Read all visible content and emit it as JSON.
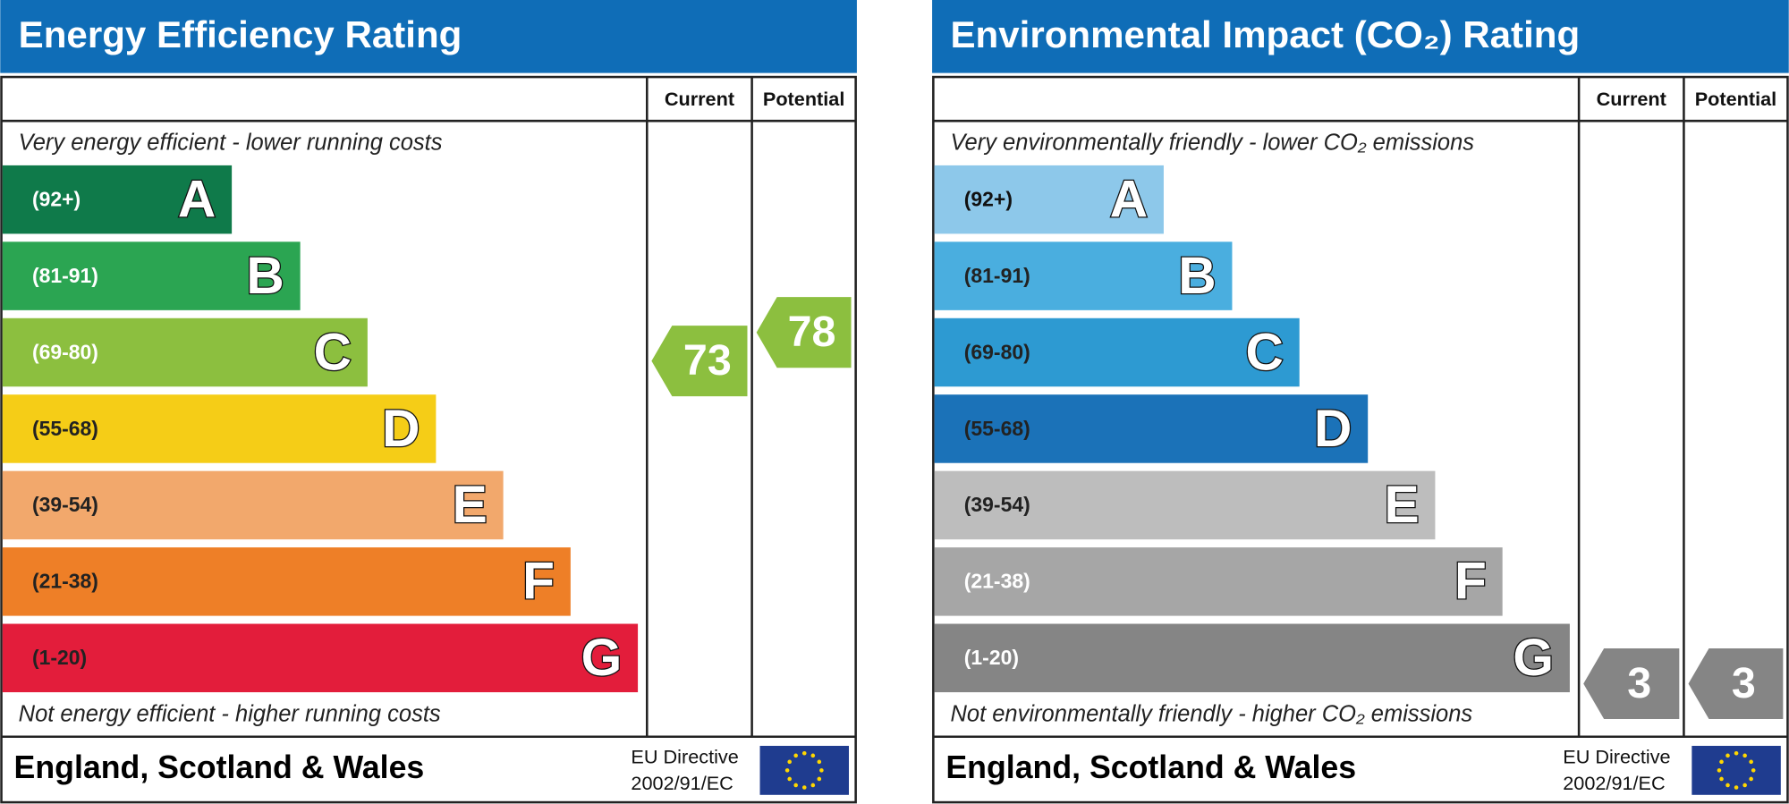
{
  "panels": [
    {
      "title": "Energy Efficiency Rating",
      "columns": [
        "Current",
        "Potential"
      ],
      "top_note": "Very energy efficient - lower running costs",
      "bottom_note": "Not energy efficient - higher running costs",
      "bands": [
        {
          "range": "(92+)",
          "letter": "A",
          "color": "#0f7a4a",
          "label_color": "#ffffff"
        },
        {
          "range": "(81-91)",
          "letter": "B",
          "color": "#2ba552",
          "label_color": "#ffffff"
        },
        {
          "range": "(69-80)",
          "letter": "C",
          "color": "#8cbf3f",
          "label_color": "#ffffff"
        },
        {
          "range": "(55-68)",
          "letter": "D",
          "color": "#f5cd17",
          "label_color": "#222222"
        },
        {
          "range": "(39-54)",
          "letter": "E",
          "color": "#f2a86c",
          "label_color": "#222222"
        },
        {
          "range": "(21-38)",
          "letter": "F",
          "color": "#ee7f27",
          "label_color": "#222222"
        },
        {
          "range": "(1-20)",
          "letter": "G",
          "color": "#e31d3b",
          "label_color": "#222222"
        }
      ],
      "current": 73,
      "potential": 78,
      "footer": "England, Scotland & Wales",
      "directive": [
        "EU Directive",
        "2002/91/EC"
      ]
    },
    {
      "title": "Environmental Impact (CO₂) Rating",
      "columns": [
        "Current",
        "Potential"
      ],
      "top_note": "Very environmentally friendly - lower CO₂ emissions",
      "bottom_note": "Not environmentally friendly - higher CO₂ emissions",
      "bands": [
        {
          "range": "(92+)",
          "letter": "A",
          "color": "#8dc8ea",
          "label_color": "#111111"
        },
        {
          "range": "(81-91)",
          "letter": "B",
          "color": "#4aaedf",
          "label_color": "#222222"
        },
        {
          "range": "(69-80)",
          "letter": "C",
          "color": "#2d9ad2",
          "label_color": "#222222"
        },
        {
          "range": "(55-68)",
          "letter": "D",
          "color": "#1b72b8",
          "label_color": "#222222"
        },
        {
          "range": "(39-54)",
          "letter": "E",
          "color": "#bdbdbd",
          "label_color": "#222222"
        },
        {
          "range": "(21-38)",
          "letter": "F",
          "color": "#a6a6a6",
          "label_color": "#ffffff"
        },
        {
          "range": "(1-20)",
          "letter": "G",
          "color": "#858585",
          "label_color": "#ffffff"
        }
      ],
      "current": 3,
      "potential": 3,
      "footer": "England, Scotland & Wales",
      "directive": [
        "EU Directive",
        "2002/91/EC"
      ]
    }
  ]
}
